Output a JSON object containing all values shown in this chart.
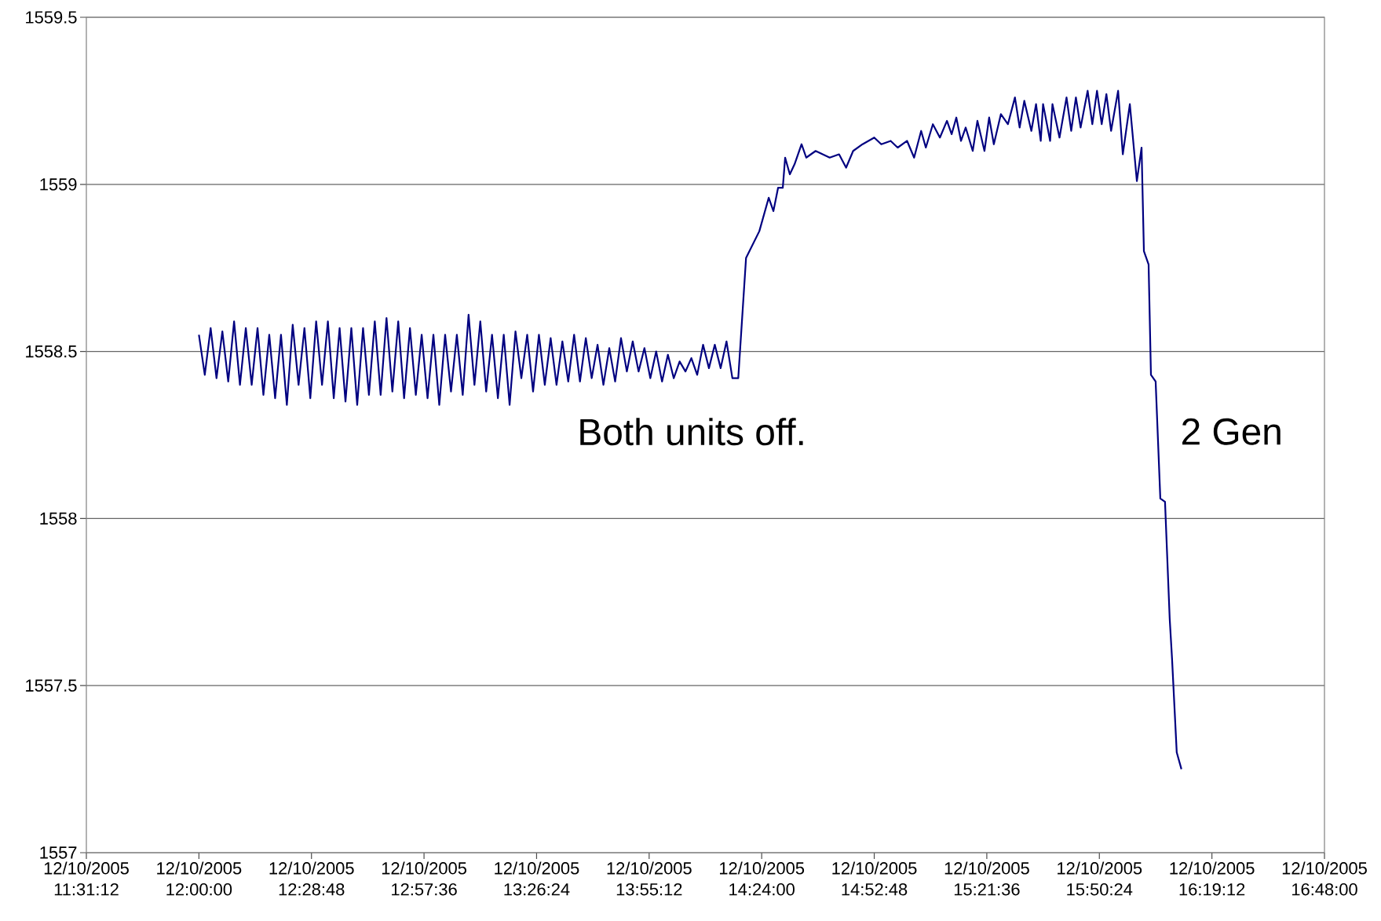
{
  "chart_data": {
    "type": "line",
    "x": [
      "2005-12-10T12:00:00",
      "2005-12-10T12:01:30",
      "2005-12-10T12:03:00",
      "2005-12-10T12:04:30",
      "2005-12-10T12:06:00",
      "2005-12-10T12:07:30",
      "2005-12-10T12:09:00",
      "2005-12-10T12:10:30",
      "2005-12-10T12:12:00",
      "2005-12-10T12:13:30",
      "2005-12-10T12:15:00",
      "2005-12-10T12:16:30",
      "2005-12-10T12:18:00",
      "2005-12-10T12:19:30",
      "2005-12-10T12:21:00",
      "2005-12-10T12:22:30",
      "2005-12-10T12:24:00",
      "2005-12-10T12:25:30",
      "2005-12-10T12:27:00",
      "2005-12-10T12:28:30",
      "2005-12-10T12:30:00",
      "2005-12-10T12:31:30",
      "2005-12-10T12:33:00",
      "2005-12-10T12:34:30",
      "2005-12-10T12:36:00",
      "2005-12-10T12:37:30",
      "2005-12-10T12:39:00",
      "2005-12-10T12:40:30",
      "2005-12-10T12:42:00",
      "2005-12-10T12:43:30",
      "2005-12-10T12:45:00",
      "2005-12-10T12:46:30",
      "2005-12-10T12:48:00",
      "2005-12-10T12:49:30",
      "2005-12-10T12:51:00",
      "2005-12-10T12:52:30",
      "2005-12-10T12:54:00",
      "2005-12-10T12:55:30",
      "2005-12-10T12:57:00",
      "2005-12-10T12:58:30",
      "2005-12-10T13:00:00",
      "2005-12-10T13:01:30",
      "2005-12-10T13:03:00",
      "2005-12-10T13:04:30",
      "2005-12-10T13:06:00",
      "2005-12-10T13:07:30",
      "2005-12-10T13:09:00",
      "2005-12-10T13:10:30",
      "2005-12-10T13:12:00",
      "2005-12-10T13:13:30",
      "2005-12-10T13:15:00",
      "2005-12-10T13:16:30",
      "2005-12-10T13:18:00",
      "2005-12-10T13:19:30",
      "2005-12-10T13:21:00",
      "2005-12-10T13:22:30",
      "2005-12-10T13:24:00",
      "2005-12-10T13:25:30",
      "2005-12-10T13:27:00",
      "2005-12-10T13:28:30",
      "2005-12-10T13:30:00",
      "2005-12-10T13:31:30",
      "2005-12-10T13:33:00",
      "2005-12-10T13:34:30",
      "2005-12-10T13:36:00",
      "2005-12-10T13:37:30",
      "2005-12-10T13:39:00",
      "2005-12-10T13:40:30",
      "2005-12-10T13:42:00",
      "2005-12-10T13:43:30",
      "2005-12-10T13:45:00",
      "2005-12-10T13:46:30",
      "2005-12-10T13:48:00",
      "2005-12-10T13:49:30",
      "2005-12-10T13:51:00",
      "2005-12-10T13:52:30",
      "2005-12-10T13:54:00",
      "2005-12-10T13:55:30",
      "2005-12-10T13:57:00",
      "2005-12-10T13:58:30",
      "2005-12-10T14:00:00",
      "2005-12-10T14:01:30",
      "2005-12-10T14:03:00",
      "2005-12-10T14:04:30",
      "2005-12-10T14:06:00",
      "2005-12-10T14:07:30",
      "2005-12-10T14:09:00",
      "2005-12-10T14:10:30",
      "2005-12-10T14:12:00",
      "2005-12-10T14:13:30",
      "2005-12-10T14:15:00",
      "2005-12-10T14:16:30",
      "2005-12-10T14:18:00",
      "2005-12-10T14:20:00",
      "2005-12-10T14:23:24",
      "2005-12-10T14:25:48",
      "2005-12-10T14:27:00",
      "2005-12-10T14:28:12",
      "2005-12-10T14:29:24",
      "2005-12-10T14:30:00",
      "2005-12-10T14:31:12",
      "2005-12-10T14:32:24",
      "2005-12-10T14:34:12",
      "2005-12-10T14:35:24",
      "2005-12-10T14:37:48",
      "2005-12-10T14:39:36",
      "2005-12-10T14:41:24",
      "2005-12-10T14:43:48",
      "2005-12-10T14:45:36",
      "2005-12-10T14:47:24",
      "2005-12-10T14:49:48",
      "2005-12-10T14:52:48",
      "2005-12-10T14:54:36",
      "2005-12-10T14:57:00",
      "2005-12-10T14:58:48",
      "2005-12-10T15:01:12",
      "2005-12-10T15:03:00",
      "2005-12-10T15:04:48",
      "2005-12-10T15:06:00",
      "2005-12-10T15:07:48",
      "2005-12-10T15:09:36",
      "2005-12-10T15:11:24",
      "2005-12-10T15:12:36",
      "2005-12-10T15:13:48",
      "2005-12-10T15:15:00",
      "2005-12-10T15:16:12",
      "2005-12-10T15:18:00",
      "2005-12-10T15:19:12",
      "2005-12-10T15:21:00",
      "2005-12-10T15:22:12",
      "2005-12-10T15:23:24",
      "2005-12-10T15:25:12",
      "2005-12-10T15:27:00",
      "2005-12-10T15:28:48",
      "2005-12-10T15:30:00",
      "2005-12-10T15:31:12",
      "2005-12-10T15:33:00",
      "2005-12-10T15:34:12",
      "2005-12-10T15:35:24",
      "2005-12-10T15:36:00",
      "2005-12-10T15:37:48",
      "2005-12-10T15:38:24",
      "2005-12-10T15:40:12",
      "2005-12-10T15:42:00",
      "2005-12-10T15:43:12",
      "2005-12-10T15:44:24",
      "2005-12-10T15:45:36",
      "2005-12-10T15:47:24",
      "2005-12-10T15:48:36",
      "2005-12-10T15:49:48",
      "2005-12-10T15:51:00",
      "2005-12-10T15:52:12",
      "2005-12-10T15:53:24",
      "2005-12-10T15:55:12",
      "2005-12-10T15:56:24",
      "2005-12-10T15:58:12",
      "2005-12-10T16:00:00",
      "2005-12-10T16:01:12",
      "2005-12-10T16:01:48",
      "2005-12-10T16:03:00",
      "2005-12-10T16:03:36",
      "2005-12-10T16:04:48",
      "2005-12-10T16:06:00",
      "2005-12-10T16:07:12",
      "2005-12-10T16:08:24",
      "2005-12-10T16:09:00",
      "2005-12-10T16:10:12",
      "2005-12-10T16:11:24"
    ],
    "values": [
      1558.55,
      1558.43,
      1558.57,
      1558.42,
      1558.56,
      1558.41,
      1558.59,
      1558.4,
      1558.57,
      1558.4,
      1558.57,
      1558.37,
      1558.55,
      1558.36,
      1558.55,
      1558.34,
      1558.58,
      1558.4,
      1558.57,
      1558.36,
      1558.59,
      1558.4,
      1558.59,
      1558.36,
      1558.57,
      1558.35,
      1558.57,
      1558.34,
      1558.57,
      1558.37,
      1558.59,
      1558.37,
      1558.6,
      1558.38,
      1558.59,
      1558.36,
      1558.57,
      1558.37,
      1558.55,
      1558.36,
      1558.55,
      1558.34,
      1558.55,
      1558.38,
      1558.55,
      1558.37,
      1558.61,
      1558.4,
      1558.59,
      1558.38,
      1558.55,
      1558.36,
      1558.55,
      1558.34,
      1558.56,
      1558.42,
      1558.55,
      1558.38,
      1558.55,
      1558.4,
      1558.54,
      1558.4,
      1558.53,
      1558.41,
      1558.55,
      1558.41,
      1558.54,
      1558.42,
      1558.52,
      1558.4,
      1558.51,
      1558.41,
      1558.54,
      1558.44,
      1558.53,
      1558.44,
      1558.51,
      1558.42,
      1558.5,
      1558.41,
      1558.49,
      1558.42,
      1558.47,
      1558.44,
      1558.48,
      1558.43,
      1558.52,
      1558.45,
      1558.52,
      1558.45,
      1558.53,
      1558.42,
      1558.42,
      1558.78,
      1558.86,
      1558.96,
      1558.92,
      1558.99,
      1558.99,
      1559.08,
      1559.03,
      1559.06,
      1559.12,
      1559.08,
      1559.1,
      1559.09,
      1559.08,
      1559.09,
      1559.05,
      1559.1,
      1559.12,
      1559.14,
      1559.12,
      1559.13,
      1559.11,
      1559.13,
      1559.08,
      1559.16,
      1559.11,
      1559.18,
      1559.14,
      1559.19,
      1559.15,
      1559.2,
      1559.13,
      1559.17,
      1559.1,
      1559.19,
      1559.1,
      1559.2,
      1559.12,
      1559.21,
      1559.18,
      1559.26,
      1559.17,
      1559.25,
      1559.16,
      1559.24,
      1559.13,
      1559.24,
      1559.13,
      1559.24,
      1559.14,
      1559.26,
      1559.16,
      1559.26,
      1559.17,
      1559.28,
      1559.18,
      1559.28,
      1559.18,
      1559.27,
      1559.16,
      1559.28,
      1559.09,
      1559.24,
      1559.01,
      1559.11,
      1558.8,
      1558.76,
      1558.43,
      1558.41,
      1558.06,
      1558.05,
      1557.7,
      1557.58,
      1557.3,
      1557.25
    ],
    "color": "#000080",
    "xlim": [
      "2005-12-10T11:31:12",
      "2005-12-10T16:48:00"
    ],
    "xticks": [
      {
        "value": "2005-12-10T11:31:12",
        "label": "12/10/2005 11:31:12"
      },
      {
        "value": "2005-12-10T12:00:00",
        "label": "12/10/2005 12:00:00"
      },
      {
        "value": "2005-12-10T12:28:48",
        "label": "12/10/2005 12:28:48"
      },
      {
        "value": "2005-12-10T12:57:36",
        "label": "12/10/2005 12:57:36"
      },
      {
        "value": "2005-12-10T13:26:24",
        "label": "12/10/2005 13:26:24"
      },
      {
        "value": "2005-12-10T13:55:12",
        "label": "12/10/2005 13:55:12"
      },
      {
        "value": "2005-12-10T14:24:00",
        "label": "12/10/2005 14:24:00"
      },
      {
        "value": "2005-12-10T14:52:48",
        "label": "12/10/2005 14:52:48"
      },
      {
        "value": "2005-12-10T15:21:36",
        "label": "12/10/2005 15:21:36"
      },
      {
        "value": "2005-12-10T15:50:24",
        "label": "12/10/2005 15:50:24"
      },
      {
        "value": "2005-12-10T16:19:12",
        "label": "12/10/2005 16:19:12"
      },
      {
        "value": "2005-12-10T16:48:00",
        "label": "12/10/2005 16:48:00"
      }
    ],
    "ylim": [
      1557,
      1559.5
    ],
    "yticks": [
      1557,
      1557.5,
      1558,
      1558.5,
      1559,
      1559.5
    ],
    "grid": "y",
    "annotations": [
      "Both units off.",
      "2 Gen"
    ]
  }
}
